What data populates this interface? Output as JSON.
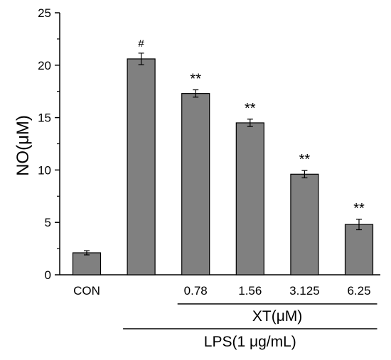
{
  "chart_data": {
    "type": "bar",
    "title": "",
    "ylabel": "NO(μM)",
    "xlabel": "",
    "ylim": [
      0,
      25
    ],
    "yticks": [
      0,
      5,
      10,
      15,
      20,
      25
    ],
    "categories": [
      "CON",
      "",
      "0.78",
      "1.56",
      "3.125",
      "6.25"
    ],
    "values": [
      2.1,
      20.6,
      17.3,
      14.5,
      9.6,
      4.8
    ],
    "errors": [
      0.2,
      0.55,
      0.35,
      0.35,
      0.35,
      0.5
    ],
    "significance": [
      "",
      "#",
      "**",
      "**",
      "**",
      "**"
    ],
    "bar_color": "#808080",
    "grid": false,
    "groups": [
      {
        "label": "XT(μM)",
        "from": 2,
        "to": 5
      },
      {
        "label": "LPS(1 μg/mL)",
        "from": 1,
        "to": 5
      }
    ]
  }
}
